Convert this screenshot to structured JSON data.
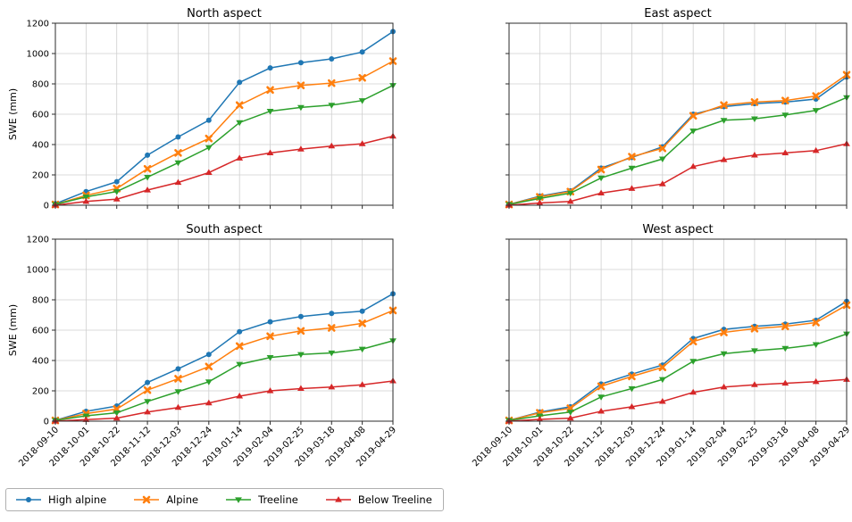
{
  "figure": {
    "background": "#ffffff",
    "grid_color": "#cfcfcf",
    "spine_color": "#2b2b2b"
  },
  "legend": {
    "entries": [
      {
        "label": "High alpine",
        "color": "#1f77b4",
        "marker": "circle"
      },
      {
        "label": "Alpine",
        "color": "#ff7f0e",
        "marker": "x"
      },
      {
        "label": "Treeline",
        "color": "#2ca02c",
        "marker": "triangle-down"
      },
      {
        "label": "Below Treeline",
        "color": "#d62728",
        "marker": "triangle-up"
      }
    ]
  },
  "chart_data": [
    {
      "type": "line",
      "title": "North aspect",
      "ylabel": "SWE (mm)",
      "xlabel": "",
      "ylim": [
        0,
        1200
      ],
      "yticks": [
        0,
        200,
        400,
        600,
        800,
        1000,
        1200
      ],
      "grid": true,
      "show_ytick_labels": true,
      "show_xtick_labels": false,
      "x": [
        "2018-09-10",
        "2018-10-01",
        "2018-10-22",
        "2018-11-12",
        "2018-12-03",
        "2018-12-24",
        "2019-01-14",
        "2019-02-04",
        "2019-02-25",
        "2019-03-18",
        "2019-04-08",
        "2019-04-29"
      ],
      "series": [
        {
          "name": "High alpine",
          "color": "#1f77b4",
          "marker": "circle",
          "values": [
            10,
            90,
            155,
            330,
            450,
            560,
            810,
            905,
            940,
            965,
            1010,
            1145
          ]
        },
        {
          "name": "Alpine",
          "color": "#ff7f0e",
          "marker": "x",
          "values": [
            5,
            65,
            110,
            240,
            345,
            440,
            660,
            760,
            790,
            805,
            840,
            950
          ]
        },
        {
          "name": "Treeline",
          "color": "#2ca02c",
          "marker": "triangle-down",
          "values": [
            5,
            55,
            90,
            185,
            280,
            380,
            545,
            620,
            645,
            660,
            690,
            790
          ]
        },
        {
          "name": "Below Treeline",
          "color": "#d62728",
          "marker": "triangle-up",
          "values": [
            0,
            25,
            40,
            100,
            150,
            215,
            310,
            345,
            370,
            390,
            405,
            455
          ]
        }
      ]
    },
    {
      "type": "line",
      "title": "East aspect",
      "ylabel": "",
      "xlabel": "",
      "ylim": [
        0,
        1200
      ],
      "yticks": [
        0,
        200,
        400,
        600,
        800,
        1000,
        1200
      ],
      "grid": true,
      "show_ytick_labels": false,
      "show_xtick_labels": false,
      "x": [
        "2018-09-10",
        "2018-10-01",
        "2018-10-22",
        "2018-11-12",
        "2018-12-03",
        "2018-12-24",
        "2019-01-14",
        "2019-02-04",
        "2019-02-25",
        "2019-03-18",
        "2019-04-08",
        "2019-04-29"
      ],
      "series": [
        {
          "name": "High alpine",
          "color": "#1f77b4",
          "marker": "circle",
          "values": [
            5,
            60,
            95,
            245,
            315,
            385,
            600,
            650,
            670,
            680,
            700,
            845
          ]
        },
        {
          "name": "Alpine",
          "color": "#ff7f0e",
          "marker": "x",
          "values": [
            5,
            55,
            90,
            235,
            320,
            375,
            590,
            660,
            680,
            690,
            720,
            860
          ]
        },
        {
          "name": "Treeline",
          "color": "#2ca02c",
          "marker": "triangle-down",
          "values": [
            5,
            45,
            80,
            180,
            245,
            305,
            490,
            560,
            570,
            595,
            625,
            710
          ]
        },
        {
          "name": "Below Treeline",
          "color": "#d62728",
          "marker": "triangle-up",
          "values": [
            0,
            15,
            25,
            80,
            110,
            140,
            255,
            300,
            330,
            345,
            360,
            405
          ]
        }
      ]
    },
    {
      "type": "line",
      "title": "South aspect",
      "ylabel": "SWE (mm)",
      "xlabel": "",
      "ylim": [
        0,
        1200
      ],
      "yticks": [
        0,
        200,
        400,
        600,
        800,
        1000,
        1200
      ],
      "grid": true,
      "show_ytick_labels": true,
      "show_xtick_labels": true,
      "x": [
        "2018-09-10",
        "2018-10-01",
        "2018-10-22",
        "2018-11-12",
        "2018-12-03",
        "2018-12-24",
        "2019-01-14",
        "2019-02-04",
        "2019-02-25",
        "2019-03-18",
        "2019-04-08",
        "2019-04-29"
      ],
      "series": [
        {
          "name": "High alpine",
          "color": "#1f77b4",
          "marker": "circle",
          "values": [
            5,
            65,
            100,
            255,
            345,
            440,
            590,
            655,
            690,
            710,
            725,
            840
          ]
        },
        {
          "name": "Alpine",
          "color": "#ff7f0e",
          "marker": "x",
          "values": [
            5,
            50,
            80,
            205,
            280,
            360,
            495,
            560,
            595,
            615,
            645,
            730
          ]
        },
        {
          "name": "Treeline",
          "color": "#2ca02c",
          "marker": "triangle-down",
          "values": [
            5,
            35,
            55,
            130,
            195,
            260,
            375,
            420,
            440,
            450,
            475,
            530
          ]
        },
        {
          "name": "Below Treeline",
          "color": "#d62728",
          "marker": "triangle-up",
          "values": [
            0,
            10,
            20,
            60,
            90,
            120,
            165,
            200,
            215,
            225,
            240,
            265
          ]
        }
      ]
    },
    {
      "type": "line",
      "title": "West aspect",
      "ylabel": "",
      "xlabel": "",
      "ylim": [
        0,
        1200
      ],
      "yticks": [
        0,
        200,
        400,
        600,
        800,
        1000,
        1200
      ],
      "grid": true,
      "show_ytick_labels": false,
      "show_xtick_labels": true,
      "x": [
        "2018-09-10",
        "2018-10-01",
        "2018-10-22",
        "2018-11-12",
        "2018-12-03",
        "2018-12-24",
        "2019-01-14",
        "2019-02-04",
        "2019-02-25",
        "2019-03-18",
        "2019-04-08",
        "2019-04-29"
      ],
      "series": [
        {
          "name": "High alpine",
          "color": "#1f77b4",
          "marker": "circle",
          "values": [
            5,
            60,
            95,
            245,
            310,
            370,
            545,
            605,
            625,
            640,
            665,
            790
          ]
        },
        {
          "name": "Alpine",
          "color": "#ff7f0e",
          "marker": "x",
          "values": [
            5,
            55,
            85,
            230,
            295,
            355,
            525,
            585,
            610,
            625,
            650,
            765
          ]
        },
        {
          "name": "Treeline",
          "color": "#2ca02c",
          "marker": "triangle-down",
          "values": [
            5,
            35,
            60,
            160,
            215,
            275,
            395,
            445,
            465,
            480,
            505,
            575
          ]
        },
        {
          "name": "Below Treeline",
          "color": "#d62728",
          "marker": "triangle-up",
          "values": [
            0,
            12,
            20,
            65,
            95,
            130,
            190,
            225,
            240,
            250,
            260,
            275
          ]
        }
      ]
    }
  ]
}
